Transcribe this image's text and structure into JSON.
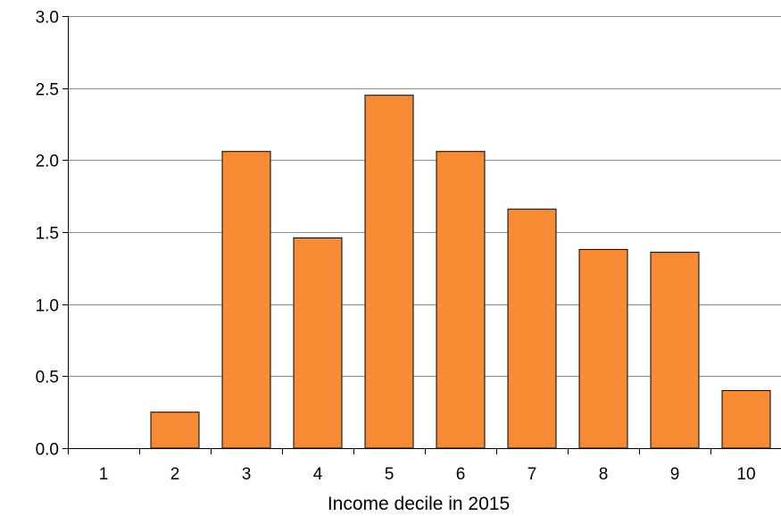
{
  "chart_data": {
    "type": "bar",
    "categories": [
      "1",
      "2",
      "3",
      "4",
      "5",
      "6",
      "7",
      "8",
      "9",
      "10"
    ],
    "values": [
      0.0,
      0.25,
      2.06,
      1.46,
      2.45,
      2.06,
      1.66,
      1.38,
      1.36,
      0.4
    ],
    "title": "",
    "xlabel": "Income decile in 2015",
    "ylabel": "",
    "ylim": [
      0,
      3
    ],
    "yticks": [
      0.0,
      0.5,
      1.0,
      1.5,
      2.0,
      2.5,
      3.0
    ],
    "ytick_labels": [
      "0.0",
      "0.5",
      "1.0",
      "1.5",
      "2.0",
      "2.5",
      "3.0"
    ],
    "grid": "horizontal",
    "legend": "none",
    "colors": {
      "bar_fill": "#f68b33",
      "bar_stroke": "#000000",
      "grid": "#8c8c8c",
      "axis": "#000000"
    }
  }
}
